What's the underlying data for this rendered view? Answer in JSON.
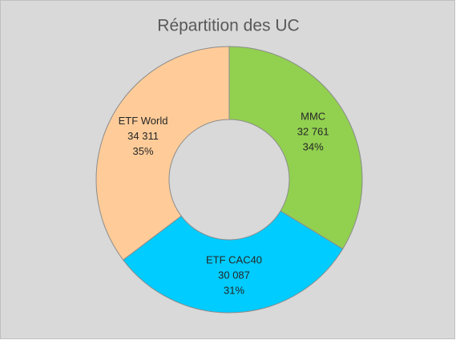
{
  "chart_data": {
    "type": "donut",
    "title": "Répartition des UC",
    "categories": [
      "MMC",
      "ETF CAC40",
      "ETF World"
    ],
    "values": [
      32761,
      30087,
      34311
    ],
    "value_labels": [
      "32 761",
      "30 087",
      "34 311"
    ],
    "percent_labels": [
      "34%",
      "31%",
      "35%"
    ],
    "colors": [
      "#92d050",
      "#00ccff",
      "#ffcc99"
    ]
  }
}
